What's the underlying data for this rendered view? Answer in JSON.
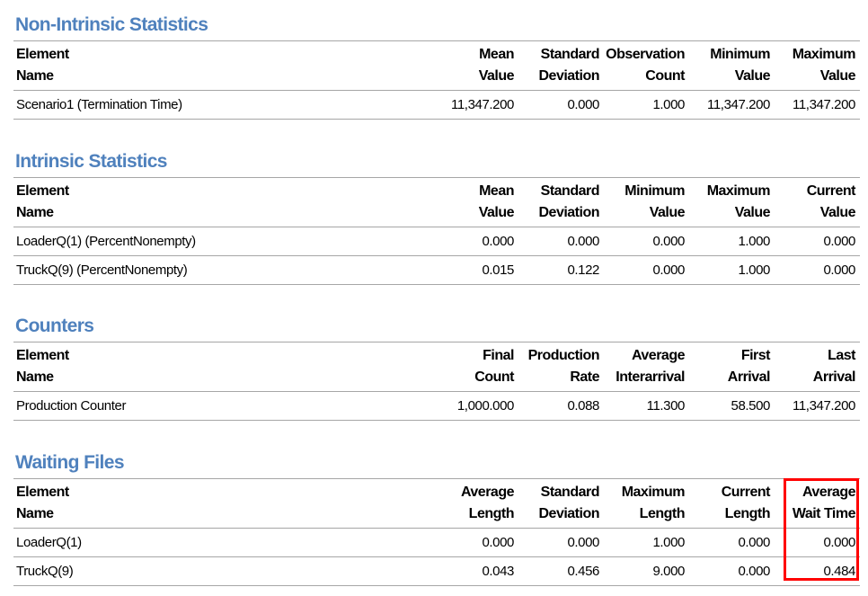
{
  "sections": {
    "non_intrinsic": {
      "title": "Non-Intrinsic Statistics",
      "headers": [
        [
          "Element",
          "Name"
        ],
        [
          "Mean",
          "Value"
        ],
        [
          "Standard",
          "Deviation"
        ],
        [
          "Observation",
          "Count"
        ],
        [
          "Minimum",
          "Value"
        ],
        [
          "Maximum",
          "Value"
        ]
      ],
      "rows": [
        [
          "Scenario1 (Termination Time)",
          "11,347.200",
          "0.000",
          "1.000",
          "11,347.200",
          "11,347.200"
        ]
      ]
    },
    "intrinsic": {
      "title": "Intrinsic Statistics",
      "headers": [
        [
          "Element",
          "Name"
        ],
        [
          "Mean",
          "Value"
        ],
        [
          "Standard",
          "Deviation"
        ],
        [
          "Minimum",
          "Value"
        ],
        [
          "Maximum",
          "Value"
        ],
        [
          "Current",
          "Value"
        ]
      ],
      "rows": [
        [
          "LoaderQ(1) (PercentNonempty)",
          "0.000",
          "0.000",
          "0.000",
          "1.000",
          "0.000"
        ],
        [
          "TruckQ(9) (PercentNonempty)",
          "0.015",
          "0.122",
          "0.000",
          "1.000",
          "0.000"
        ]
      ]
    },
    "counters": {
      "title": "Counters",
      "headers": [
        [
          "Element",
          "Name"
        ],
        [
          "Final",
          "Count"
        ],
        [
          "Production",
          "Rate"
        ],
        [
          "Average",
          "Interarrival"
        ],
        [
          "First",
          "Arrival"
        ],
        [
          "Last",
          "Arrival"
        ]
      ],
      "rows": [
        [
          "Production Counter",
          "1,000.000",
          "0.088",
          "11.300",
          "58.500",
          "11,347.200"
        ]
      ]
    },
    "waiting_files": {
      "title": "Waiting Files",
      "headers": [
        [
          "Element",
          "Name"
        ],
        [
          "Average",
          "Length"
        ],
        [
          "Standard",
          "Deviation"
        ],
        [
          "Maximum",
          "Length"
        ],
        [
          "Current",
          "Length"
        ],
        [
          "Average",
          "Wait Time"
        ]
      ],
      "rows": [
        [
          "LoaderQ(1)",
          "0.000",
          "0.000",
          "1.000",
          "0.000",
          "0.000"
        ],
        [
          "TruckQ(9)",
          "0.043",
          "0.456",
          "9.000",
          "0.000",
          "0.484"
        ]
      ]
    }
  },
  "colors": {
    "section_title": "#4f81bd",
    "highlight": "#ff0000",
    "grid_line": "#a6a6a6"
  }
}
